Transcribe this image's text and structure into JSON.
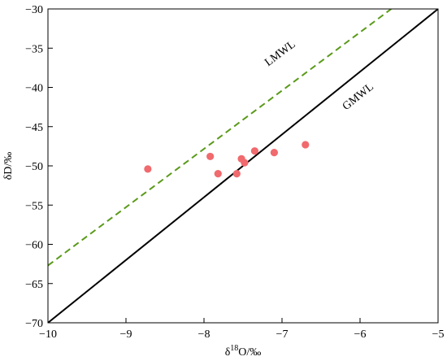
{
  "chart_data": {
    "type": "scatter",
    "title": "",
    "xlabel": {
      "main": "δ",
      "sup": "18",
      "rest": "O/‰"
    },
    "ylabel": "δD/‰",
    "xlim": [
      -10,
      -5
    ],
    "ylim": [
      -70,
      -30
    ],
    "xticks": [
      -10,
      -9,
      -8,
      -7,
      -6,
      -5
    ],
    "yticks": [
      -70,
      -65,
      -60,
      -55,
      -50,
      -45,
      -40,
      -35,
      -30
    ],
    "grid": false,
    "points": {
      "color": "#f06a6e",
      "x": [
        -8.72,
        -7.92,
        -7.82,
        -7.58,
        -7.52,
        -7.48,
        -7.35,
        -7.1,
        -6.7
      ],
      "y": [
        -50.4,
        -48.8,
        -51.0,
        -51.0,
        -49.1,
        -49.6,
        -48.1,
        -48.3,
        -47.3
      ]
    },
    "lines": [
      {
        "label": "LMWL",
        "color": "#5a9a1a",
        "style": "dashed",
        "x": [
          -10,
          -5.6
        ],
        "y": [
          -62.7,
          -30
        ]
      },
      {
        "label": "GMWL",
        "color": "#000000",
        "style": "solid",
        "x": [
          -10,
          -5
        ],
        "y": [
          -70,
          -30
        ]
      }
    ]
  }
}
